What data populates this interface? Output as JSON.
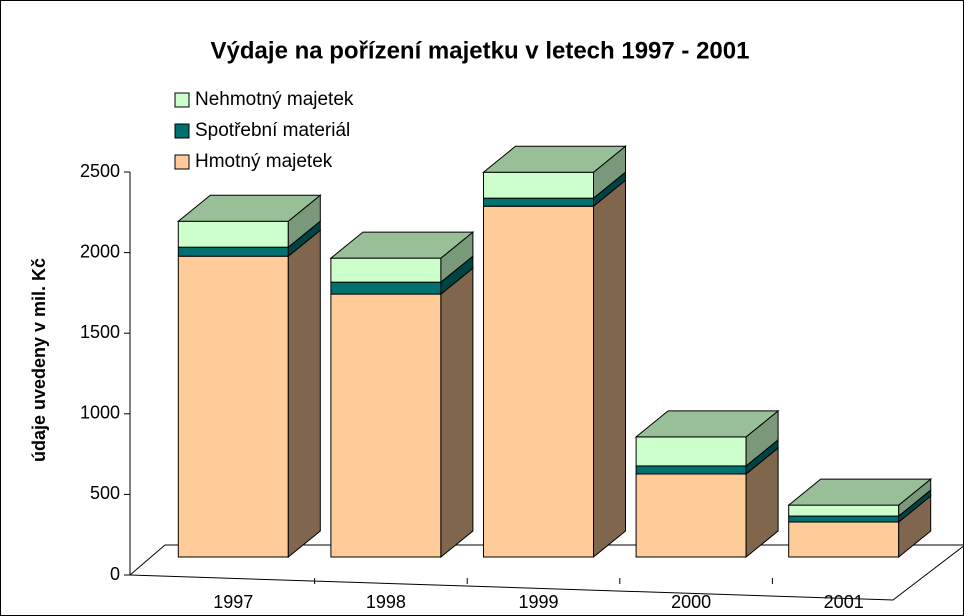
{
  "chart_data": {
    "type": "bar3d_stacked",
    "title": "Výdaje na pořízení majetku v letech 1997 - 2001",
    "ylabel": "údaje uvedeny v mil. Kč",
    "categories": [
      "1997",
      "1998",
      "1999",
      "2000",
      "2001"
    ],
    "series": [
      {
        "name": "Hmotný majetek",
        "color": "#ffcc99",
        "values": [
          1866,
          1631,
          2176,
          515,
          217
        ]
      },
      {
        "name": "Spotřební materiál",
        "color": "#007070",
        "values": [
          56,
          74,
          50,
          50,
          37
        ]
      },
      {
        "name": "Nehmotný majetek",
        "color": "#ccffcc",
        "values": [
          161,
          149,
          161,
          180,
          68
        ]
      }
    ],
    "ylim": [
      0,
      2500
    ],
    "yticks": [
      0,
      500,
      1000,
      1500,
      2000,
      2500
    ]
  }
}
